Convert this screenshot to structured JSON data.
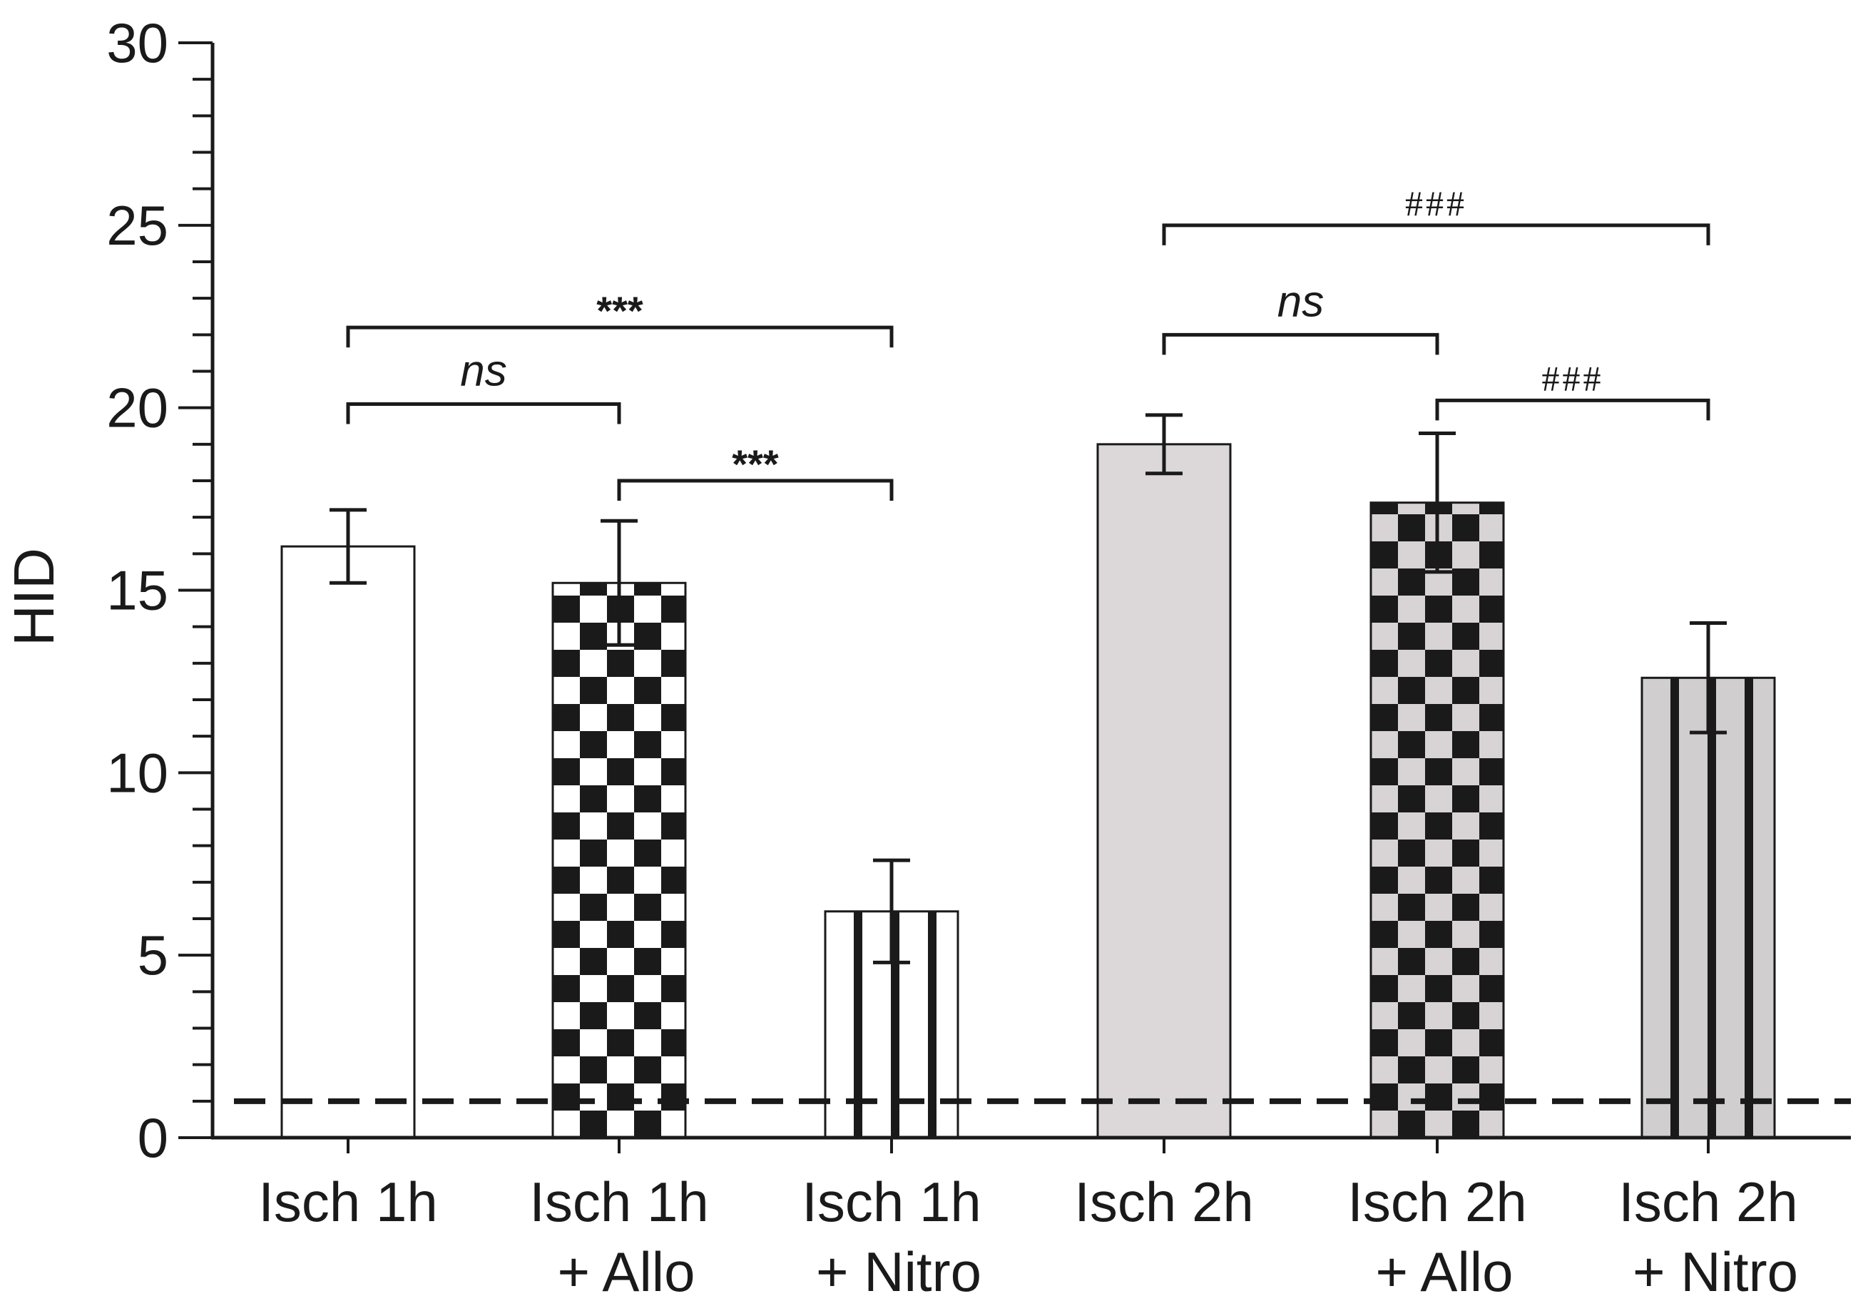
{
  "chart_data": {
    "type": "bar",
    "title": "",
    "xlabel": "",
    "ylabel": "HID",
    "ylim": [
      0,
      30
    ],
    "yticks": [
      0,
      5,
      10,
      15,
      20,
      25,
      30
    ],
    "categories": [
      [
        "Isch 1h"
      ],
      [
        "Isch 1h",
        "+ Allo"
      ],
      [
        "Isch 1h",
        "+ Nitro"
      ],
      [
        "Isch 2h"
      ],
      [
        "Isch 2h",
        "+ Allo"
      ],
      [
        "Isch 2h",
        "+ Nitro"
      ]
    ],
    "values": [
      16.2,
      15.2,
      6.2,
      19.0,
      17.4,
      12.6
    ],
    "errors": [
      1.0,
      1.7,
      1.4,
      0.8,
      1.9,
      1.5
    ],
    "fills": [
      {
        "pattern": "none",
        "background": "#ffffff"
      },
      {
        "pattern": "checker",
        "background": "#ffffff"
      },
      {
        "pattern": "vertical-lines",
        "background": "#ffffff"
      },
      {
        "pattern": "none",
        "background": "#dcd8da"
      },
      {
        "pattern": "checker",
        "background": "#d8d4d6"
      },
      {
        "pattern": "vertical-lines",
        "background": "#d0cecf"
      }
    ],
    "reference_line": {
      "y": 1,
      "style": "dashed"
    },
    "grid": false,
    "legend": "none",
    "significance": [
      {
        "from": 0,
        "to": 1,
        "y": 20.1,
        "label": "ns",
        "style": "ns"
      },
      {
        "from": 1,
        "to": 2,
        "y": 18.0,
        "label": "***",
        "style": "star"
      },
      {
        "from": 0,
        "to": 2,
        "y": 22.2,
        "label": "***",
        "style": "star"
      },
      {
        "from": 3,
        "to": 4,
        "y": 22.0,
        "label": "ns",
        "style": "ns"
      },
      {
        "from": 4,
        "to": 5,
        "y": 20.2,
        "label": "###",
        "style": "hash"
      },
      {
        "from": 3,
        "to": 5,
        "y": 25.0,
        "label": "###",
        "style": "hash"
      }
    ],
    "colors": {
      "ink": "#1a1a1a",
      "checker_dark": "#1a1a1a"
    }
  }
}
